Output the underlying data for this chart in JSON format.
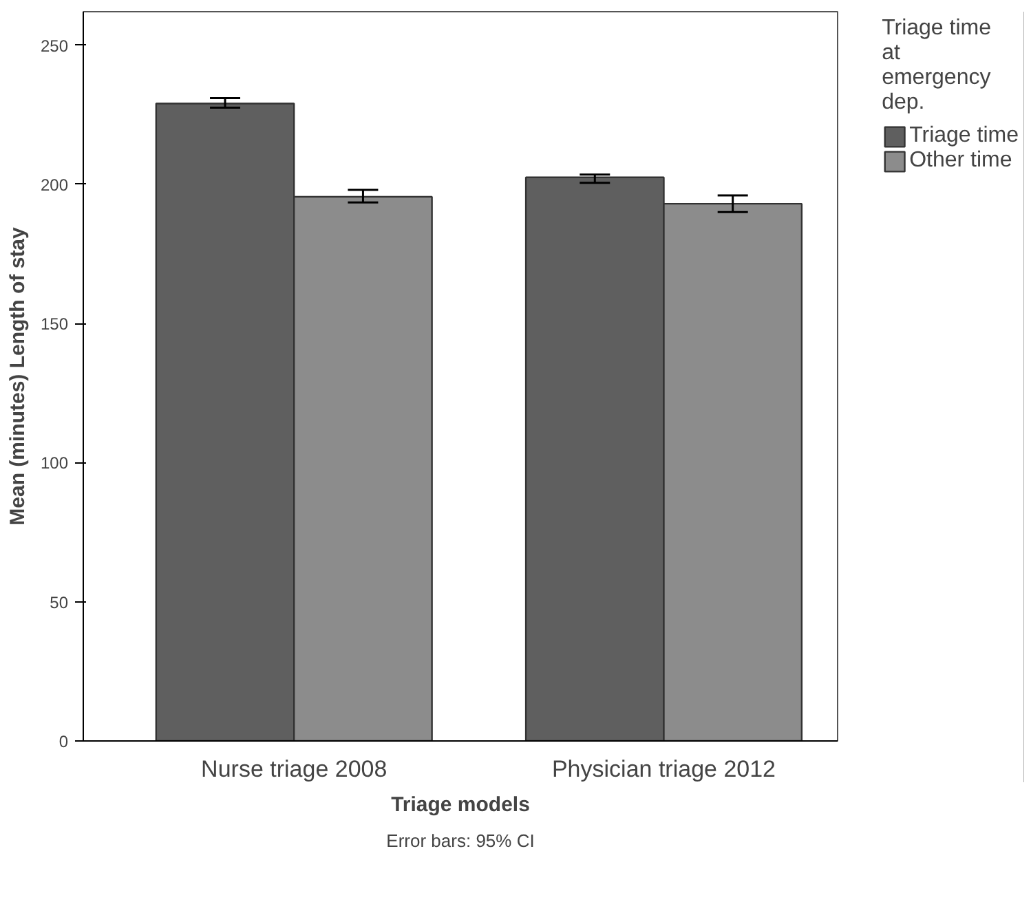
{
  "chart_data": {
    "type": "bar",
    "xlabel": "Triage models",
    "ylabel": "Mean (minutes) Length of stay",
    "legend_title": "Triage time\nat\nemergency\ndep.",
    "categories": [
      "Nurse triage 2008",
      "Physician triage 2012"
    ],
    "series": [
      {
        "name": "Triage time",
        "color": "#5f5f5f",
        "values": [
          229,
          202.5
        ],
        "errors": [
          [
            227.5,
            231
          ],
          [
            200.5,
            203.5
          ]
        ]
      },
      {
        "name": "Other time",
        "color": "#8c8c8c",
        "values": [
          195.5,
          193
        ],
        "errors": [
          [
            193.5,
            198
          ],
          [
            190,
            196
          ]
        ]
      }
    ],
    "ylim": [
      0,
      262
    ],
    "yticks": [
      0,
      50,
      100,
      150,
      200,
      250
    ],
    "grid": false,
    "legend": "top right",
    "annotations": [
      "Error bars: 95% CI"
    ]
  }
}
